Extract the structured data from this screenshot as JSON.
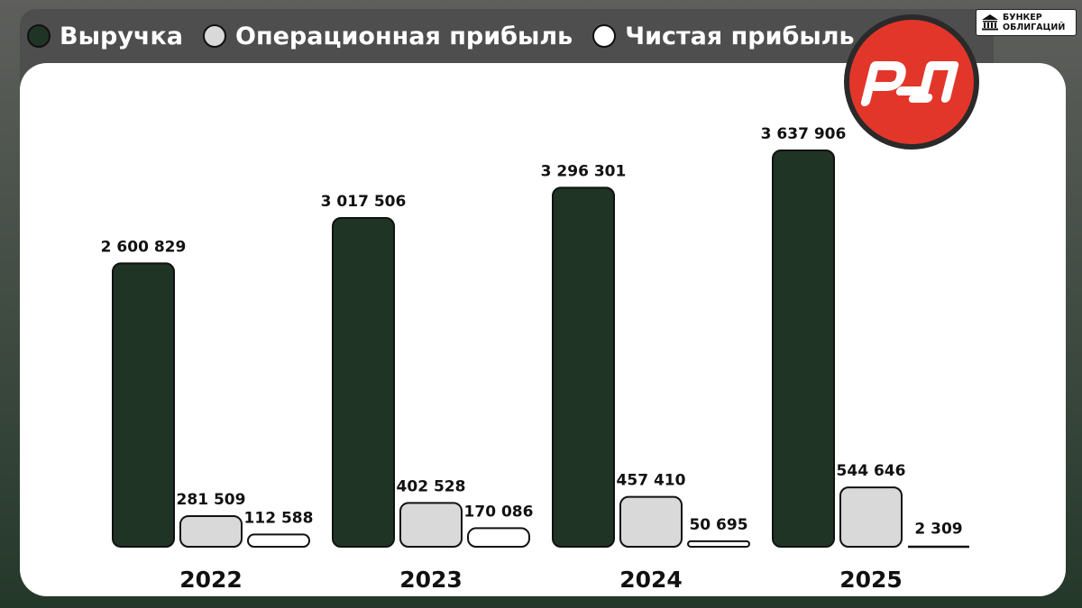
{
  "colors": {
    "revenue": "#203426",
    "operating": "#d9d9d9",
    "net": "#ffffff",
    "logo": "#e3362a"
  },
  "legend": [
    {
      "label": "Выручка",
      "color": "#203426"
    },
    {
      "label": "Операционная прибыль",
      "color": "#d9d9d9"
    },
    {
      "label": "Чистая прибыль",
      "color": "#ffffff"
    }
  ],
  "brand": {
    "line1": "БУНКЕР",
    "line2": "ОБЛИГАЦИЙ",
    "icon": "bank-building-icon"
  },
  "logo": {
    "icon": "rzd-logo-icon"
  },
  "chart_data": {
    "type": "bar",
    "categories": [
      "2022",
      "2023",
      "2024",
      "2025"
    ],
    "series": [
      {
        "name": "Выручка",
        "values": [
          2600829,
          3017506,
          3296301,
          3637906
        ],
        "labels": [
          "2 600 829",
          "3 017 506",
          "3 296 301",
          "3 637 906"
        ]
      },
      {
        "name": "Операционная прибыль",
        "values": [
          281509,
          402528,
          457410,
          544646
        ],
        "labels": [
          "281 509",
          "402 528",
          "457 410",
          "544 646"
        ]
      },
      {
        "name": "Чистая прибыль",
        "values": [
          112588,
          170086,
          50695,
          2309
        ],
        "labels": [
          "112 588",
          "170 086",
          "50 695",
          "2 309"
        ]
      }
    ],
    "ylim": [
      0,
      4000000
    ],
    "grid": false,
    "legend": "top-left"
  }
}
